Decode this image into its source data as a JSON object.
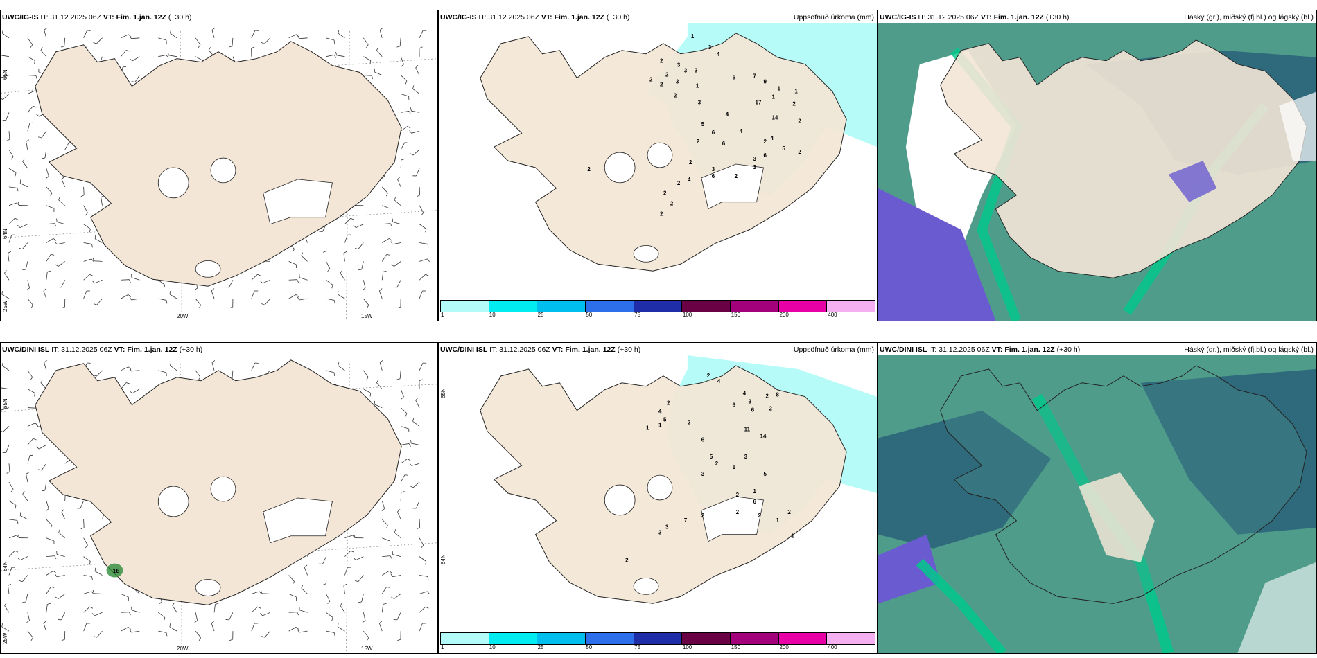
{
  "row1": {
    "wind": {
      "header_model": "UWC/IG-IS",
      "header_it": "IT: 31.12.2025 06Z",
      "header_vt_label": "VT:",
      "header_vt": "Fim. 1.jan. 12Z",
      "header_lead": "(+30 h)",
      "lat_top": "65N",
      "lat_mid": "64N",
      "lon_left": "25W",
      "lon_20": "20W",
      "lon_15": "15W"
    },
    "precip": {
      "header_model": "UWC/IG-IS",
      "header_it": "IT: 31.12.2025 06Z",
      "header_vt_label": "VT:",
      "header_vt": "Fim. 1.jan. 12Z",
      "header_lead": "(+30 h)",
      "title_right": "Uppsöfnuð úrkoma (mm)",
      "values": [
        "1",
        "3",
        "4",
        "2",
        "3",
        "3",
        "3",
        "2",
        "2",
        "3",
        "2",
        "1",
        "2",
        "3",
        "5",
        "7",
        "9",
        "1",
        "1",
        "1",
        "4",
        "5",
        "6",
        "2",
        "4",
        "6",
        "2",
        "17",
        "14",
        "2",
        "2",
        "4",
        "5",
        "2",
        "6",
        "2",
        "3",
        "3",
        "2",
        "2",
        "6",
        "4",
        "2",
        "2",
        "2",
        "2",
        "3"
      ]
    },
    "cloud": {
      "header_model": "UWC/IG-IS",
      "header_it": "IT: 31.12.2025 06Z",
      "header_vt_label": "VT:",
      "header_vt": "Fim. 1.jan. 12Z",
      "header_lead": "(+30 h)",
      "title_right": "Háský (gr.), miðský (fj.bl.) og lágský (bl.)"
    }
  },
  "row2": {
    "wind": {
      "header_model": "UWC/DINI ISL",
      "header_it": "IT: 31.12.2025 06Z",
      "header_vt_label": "VT:",
      "header_vt": "Fim. 1.jan. 12Z",
      "header_lead": "(+30 h)",
      "lat_top": "65N",
      "lat_mid": "64N",
      "lon_left": "25W",
      "lon_20": "20W",
      "lon_15": "15W",
      "marker": "16"
    },
    "precip": {
      "header_model": "UWC/DINI ISL",
      "header_it": "IT: 31.12.2025 06Z",
      "header_vt_label": "VT:",
      "header_vt": "Fim. 1.jan. 12Z",
      "header_lead": "(+30 h)",
      "title_right": "Uppsöfnuð úrkoma (mm)",
      "lat_top": "65N",
      "lat_mid": "64N",
      "values": [
        "2",
        "4",
        "4",
        "3",
        "6",
        "6",
        "8",
        "2",
        "2",
        "2",
        "4",
        "5",
        "1",
        "1",
        "2",
        "6",
        "5",
        "2",
        "3",
        "11",
        "14",
        "3",
        "1",
        "5",
        "1",
        "2",
        "6",
        "2",
        "2",
        "7",
        "3",
        "3",
        "2",
        "1",
        "2",
        "1",
        "2"
      ]
    },
    "cloud": {
      "header_model": "UWC/DINI ISL",
      "header_it": "IT: 31.12.2025 06Z",
      "header_vt_label": "VT:",
      "header_vt": "Fim. 1.jan. 12Z",
      "header_lead": "(+30 h)",
      "title_right": "Háský (gr.), miðský (fj.bl.) og lágský (bl.)"
    }
  },
  "colorbar": {
    "labels": [
      "1",
      "10",
      "25",
      "50",
      "75",
      "100",
      "150",
      "200",
      "400"
    ],
    "colors": [
      "#b3fbf9",
      "#00ecf0",
      "#00bfee",
      "#2d6fea",
      "#1f2ea8",
      "#6a0145",
      "#a3007c",
      "#e800a6",
      "#f5b0f2"
    ]
  },
  "colors": {
    "land": "#f3e6d6",
    "coast": "#222222",
    "precip_light": "#b7fbf8",
    "cloud_high": "#4f9c8b",
    "cloud_mid": "#2f6a7c",
    "cloud_low": "#6a5bd0",
    "cloud_edge": "#00c98a"
  }
}
